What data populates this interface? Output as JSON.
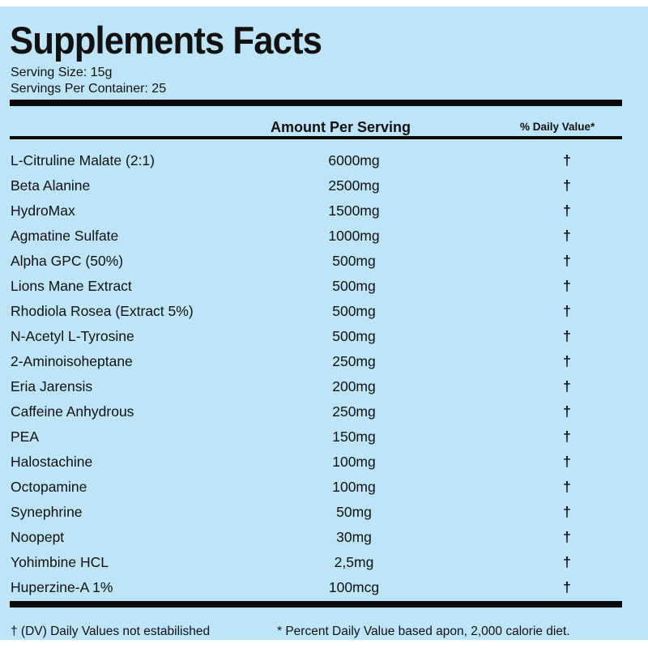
{
  "title": "Supplements Facts",
  "serving_size": "Serving Size: 15g",
  "servings_per_container": "Servings Per Container: 25",
  "header": {
    "amount": "Amount Per Serving",
    "daily_value": "% Daily Value*"
  },
  "ingredients": [
    {
      "name": "L-Citruline Malate (2:1)",
      "amount": "6000mg",
      "dv": "†"
    },
    {
      "name": "Beta Alanine",
      "amount": "2500mg",
      "dv": "†"
    },
    {
      "name": "HydroMax",
      "amount": "1500mg",
      "dv": "†"
    },
    {
      "name": "Agmatine Sulfate",
      "amount": "1000mg",
      "dv": "†"
    },
    {
      "name": "Alpha GPC (50%)",
      "amount": "500mg",
      "dv": "†"
    },
    {
      "name": "Lions Mane Extract",
      "amount": "500mg",
      "dv": "†"
    },
    {
      "name": "Rhodiola Rosea (Extract 5%)",
      "amount": "500mg",
      "dv": "†"
    },
    {
      "name": "N-Acetyl L-Tyrosine",
      "amount": "500mg",
      "dv": "†"
    },
    {
      "name": "2-Aminoisoheptane",
      "amount": "250mg",
      "dv": "†"
    },
    {
      "name": "Eria Jarensis",
      "amount": "200mg",
      "dv": "†"
    },
    {
      "name": "Caffeine Anhydrous",
      "amount": "250mg",
      "dv": "†"
    },
    {
      "name": "PEA",
      "amount": "150mg",
      "dv": "†"
    },
    {
      "name": "Halostachine",
      "amount": "100mg",
      "dv": "†"
    },
    {
      "name": "Octopamine",
      "amount": "100mg",
      "dv": "†"
    },
    {
      "name": "Synephrine",
      "amount": "50mg",
      "dv": "†"
    },
    {
      "name": "Noopept",
      "amount": "30mg",
      "dv": "†"
    },
    {
      "name": "Yohimbine HCL",
      "amount": "2,5mg",
      "dv": "†"
    },
    {
      "name": "Huperzine-A 1%",
      "amount": "100mcg",
      "dv": "†"
    }
  ],
  "footer": {
    "left": "† (DV) Daily Values not estabilished",
    "right": "* Percent Daily Value based apon, 2,000 calorie diet."
  },
  "colors": {
    "background": "#bee4f7",
    "text": "#111111",
    "rules": "#0a0a0a"
  }
}
